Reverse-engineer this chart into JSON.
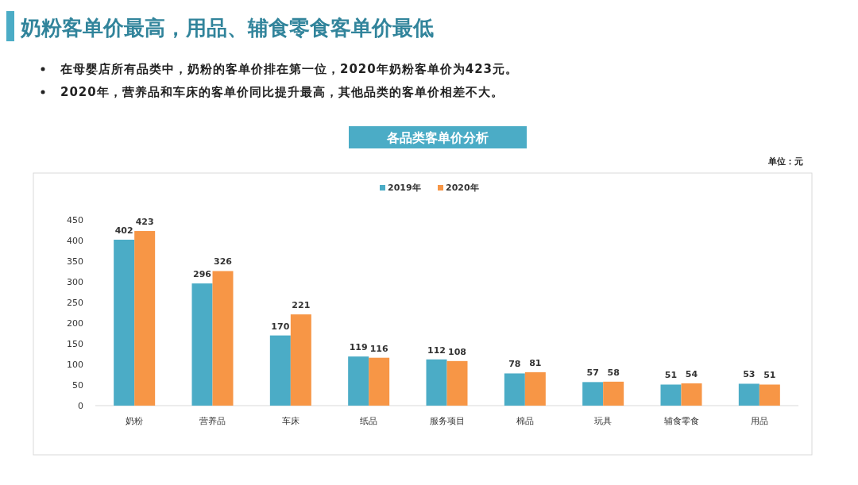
{
  "chart_data": {
    "type": "bar",
    "title": "奶粉客单价最高，用品、辅食零食客单价最低",
    "subtitle": "各品类客单价分析",
    "annotations": [
      "在母婴店所有品类中，奶粉的客单价排在第一位，2020年奶粉客单价为423元。",
      "2020年，营养品和车床的客单价同比提升最高，其他品类的客单价相差不大。",
      "单位：元"
    ],
    "categories": [
      "奶粉",
      "营养品",
      "车床",
      "纸品",
      "服务项目",
      "棉品",
      "玩具",
      "辅食零食",
      "用品"
    ],
    "series": [
      {
        "name": "2019年",
        "color": "#4bacc6",
        "values": [
          402,
          296,
          170,
          119,
          112,
          78,
          57,
          51,
          53
        ]
      },
      {
        "name": "2020年",
        "color": "#f79646",
        "values": [
          423,
          326,
          221,
          116,
          108,
          81,
          58,
          54,
          51
        ]
      }
    ],
    "ylim": [
      0,
      450
    ],
    "yticks": [
      0,
      50,
      100,
      150,
      200,
      250,
      300,
      350,
      400,
      450
    ],
    "data_labels": true,
    "legend": "top",
    "grid": false
  }
}
